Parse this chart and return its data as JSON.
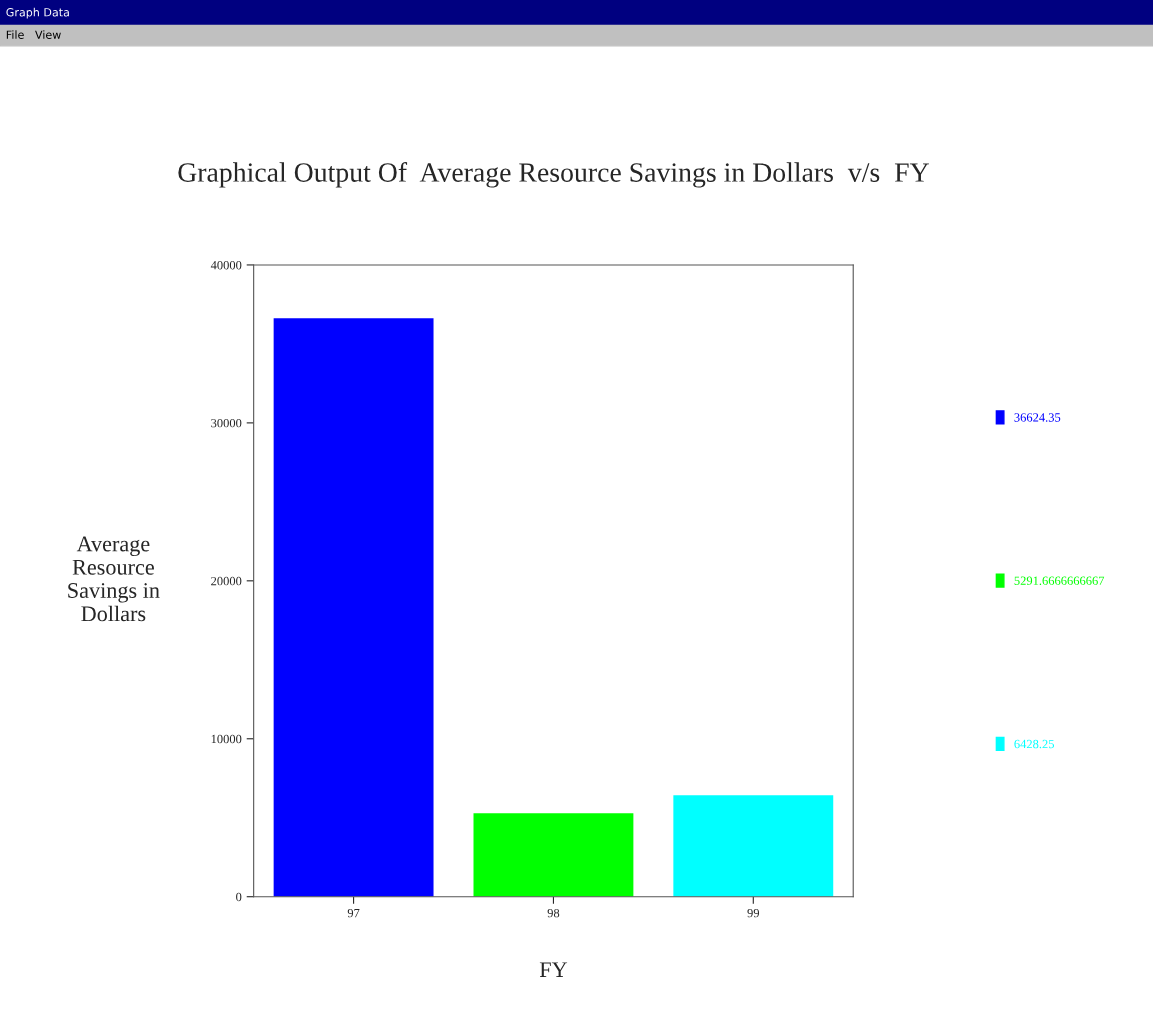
{
  "chart_data": {
    "type": "bar",
    "title": "Graphical Output Of  Average Resource Savings in Dollars  v/s  FY",
    "xlabel": "FY",
    "ylabel": "Average\nResource\nSavings in\nDollars",
    "categories": [
      "97",
      "98",
      "99"
    ],
    "series": [
      {
        "name": "36624.35",
        "color": "#0000ff",
        "values": [
          36624.35,
          null,
          null
        ]
      },
      {
        "name": "5291.6666666667",
        "color": "#00ff00",
        "values": [
          null,
          5291.6666666667,
          null
        ]
      },
      {
        "name": "6428.25",
        "color": "#00ffff",
        "values": [
          null,
          null,
          6428.25
        ]
      }
    ],
    "ylim": [
      0,
      40000
    ],
    "yticks": [
      0,
      10000,
      20000,
      30000,
      40000
    ],
    "grid": false,
    "legend": "right",
    "annotations": [
      "Graph Data",
      "File   View"
    ]
  }
}
